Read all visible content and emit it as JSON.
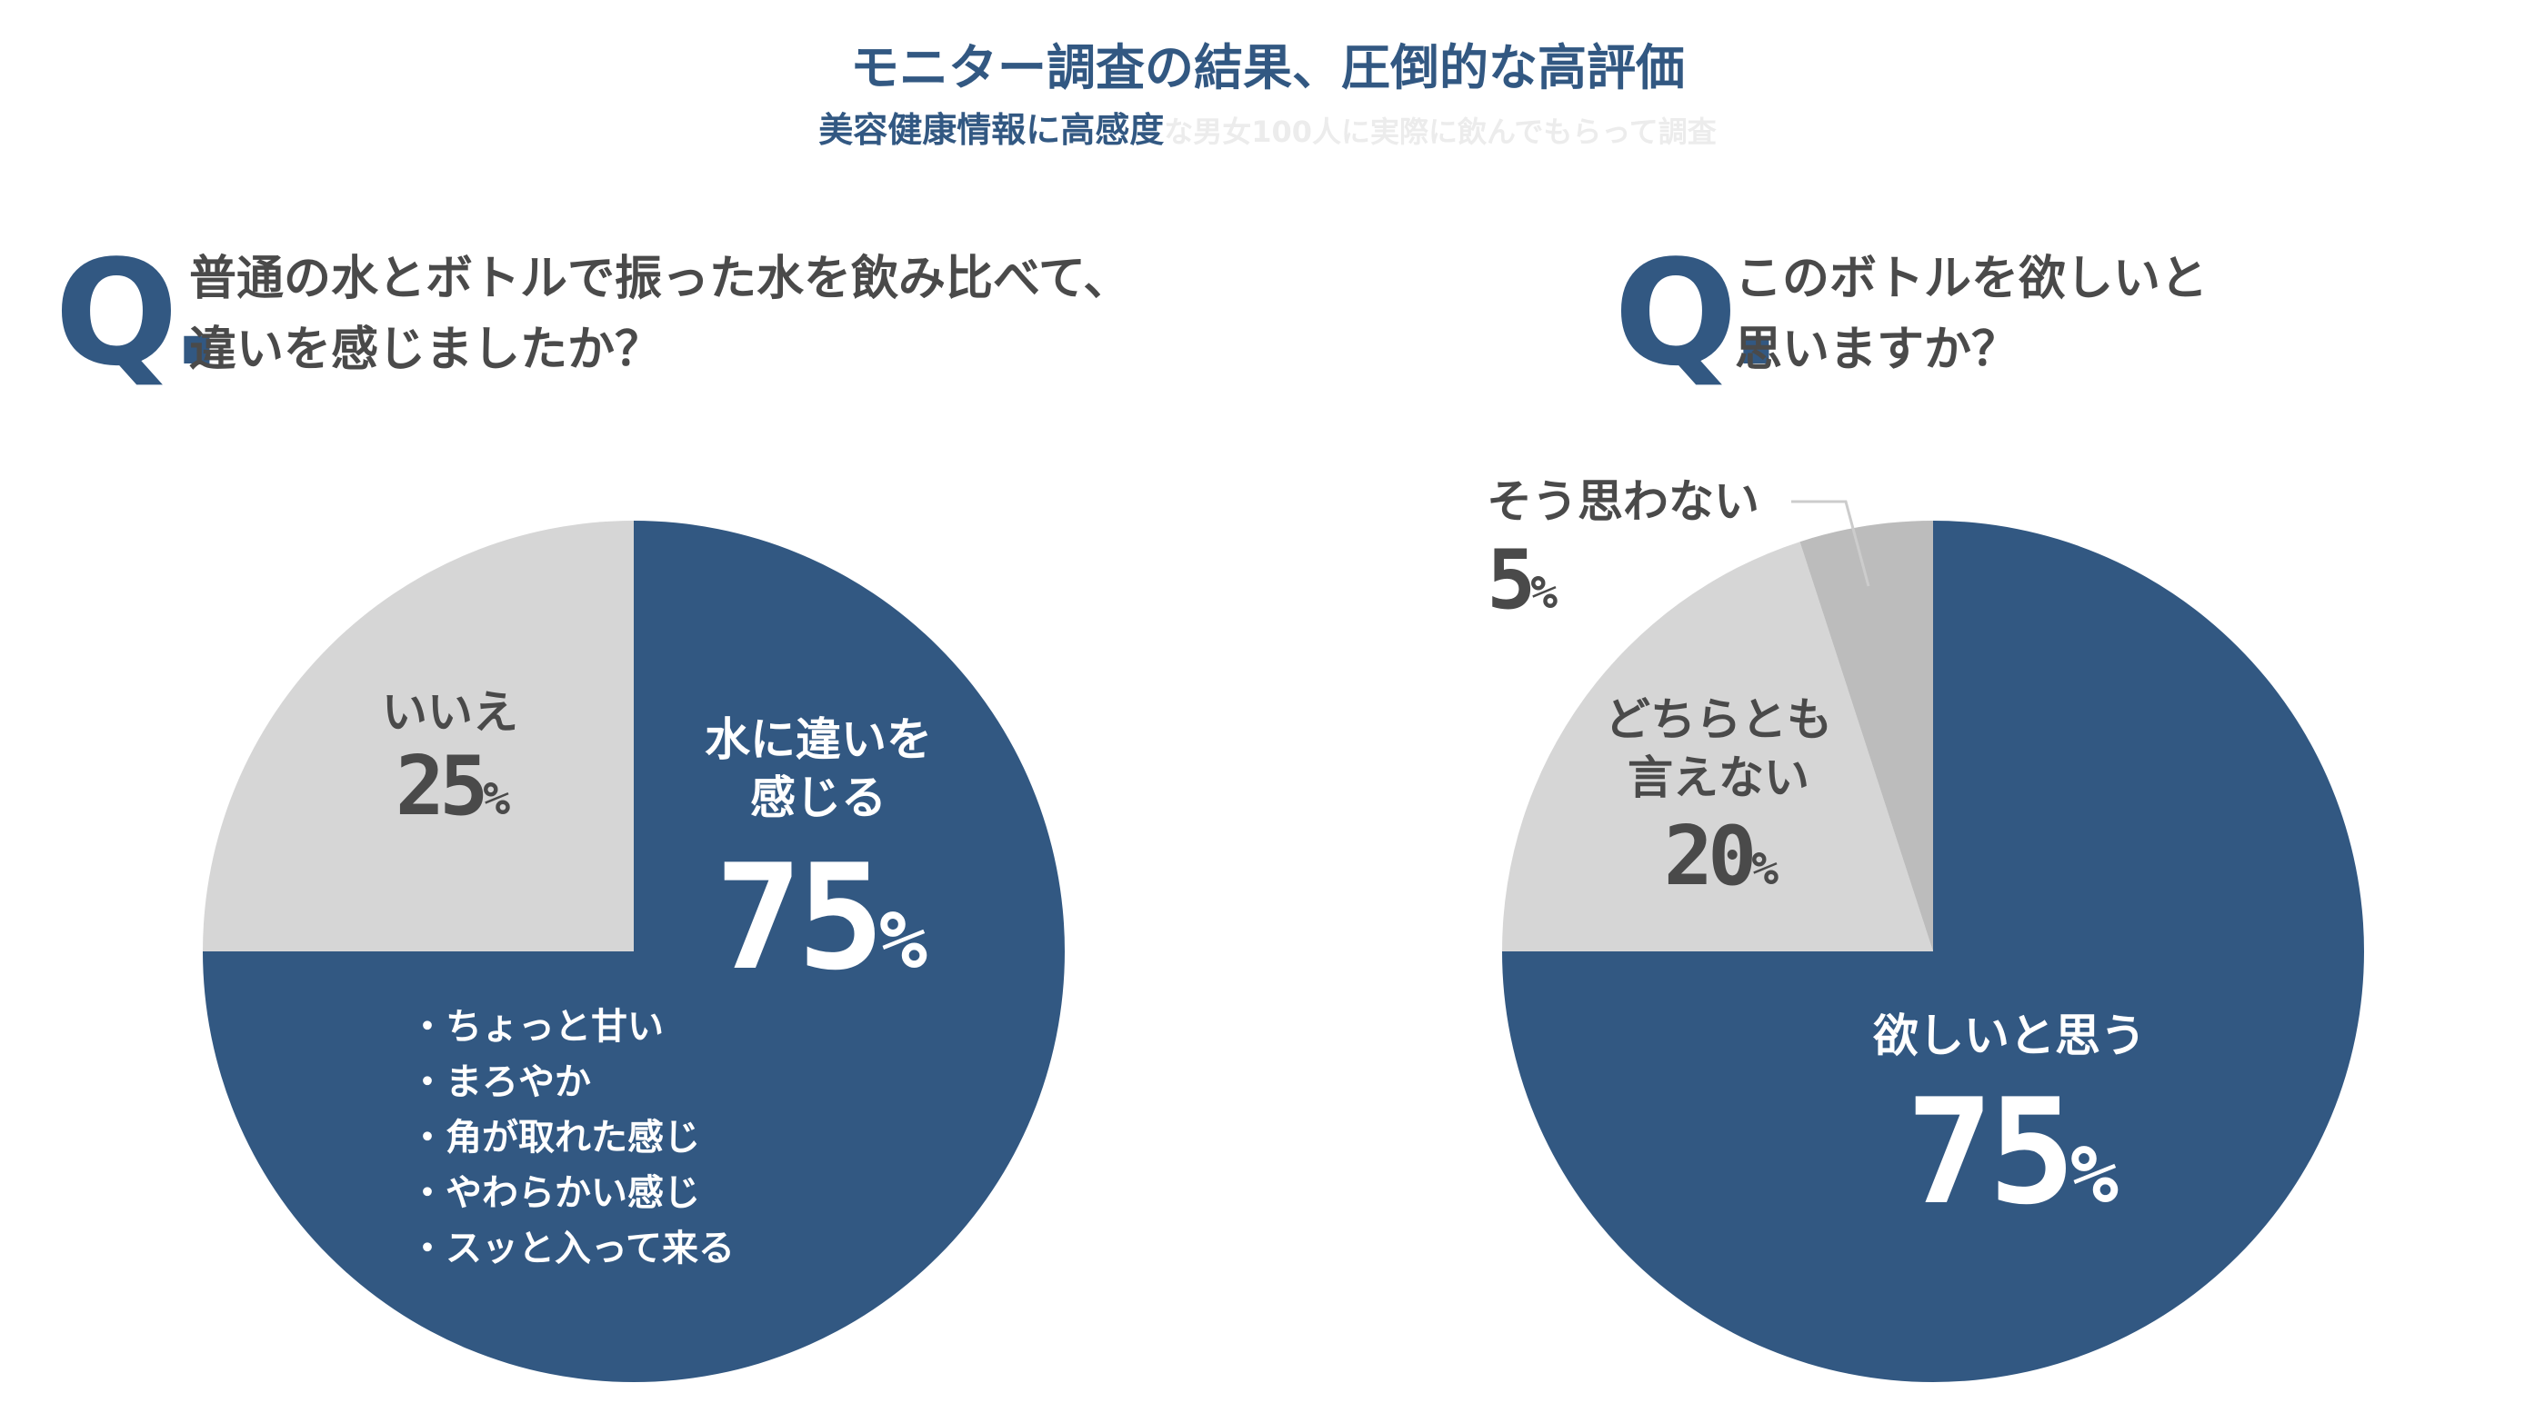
{
  "title": "モニター調査の結果、圧倒的な高評価",
  "subtitle": {
    "highlight": "美容健康情報に高感度",
    "rest": "な男女100人に実際に飲んでもらって調査"
  },
  "q_mark": "Q.",
  "colors": {
    "navy": "#325882",
    "light_gray": "#d6d6d6",
    "mid_gray": "#bcbcbc",
    "text": "#4a4a4a"
  },
  "chart_data": [
    {
      "type": "pie",
      "question": [
        "普通の水とボトルで振った水を飲み比べて、",
        "違いを感じましたか？"
      ],
      "slices": [
        {
          "label": [
            "水に違いを",
            "感じる"
          ],
          "value": 75,
          "display": "75",
          "unit": "%",
          "color": "#325882"
        },
        {
          "label": [
            "いいえ"
          ],
          "value": 25,
          "display": "25",
          "unit": "%",
          "color": "#d6d6d6"
        }
      ],
      "notes": [
        "・ちょっと甘い",
        "・まろやか",
        "・角が取れた感じ",
        "・やわらかい感じ",
        "・スッと入って来る"
      ]
    },
    {
      "type": "pie",
      "question": [
        "このボトルを欲しいと",
        "思いますか？"
      ],
      "slices": [
        {
          "label": [
            "欲しいと思う"
          ],
          "value": 75,
          "display": "75",
          "unit": "%",
          "color": "#325882"
        },
        {
          "label": [
            "どちらとも",
            "言えない"
          ],
          "value": 20,
          "display": "20",
          "unit": "%",
          "color": "#d6d6d6"
        },
        {
          "label": [
            "そう思わない"
          ],
          "value": 5,
          "display": "5",
          "unit": "%",
          "color": "#bcbcbc"
        }
      ]
    }
  ]
}
